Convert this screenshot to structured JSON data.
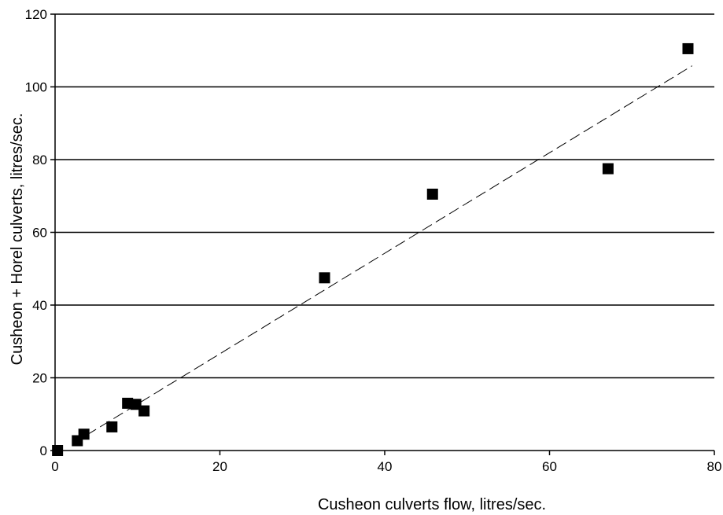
{
  "chart_data": {
    "type": "scatter",
    "title": "",
    "xlabel": "Cusheon culverts flow, litres/sec.",
    "ylabel": "Cusheon + Horel culverts, litres/sec.",
    "xlim": [
      0,
      80
    ],
    "ylim": [
      0,
      120
    ],
    "x_ticks": [
      "0",
      "20",
      "40",
      "60",
      "80"
    ],
    "y_ticks": [
      "0",
      "20",
      "40",
      "60",
      "80",
      "100",
      "120"
    ],
    "grid": "horizontal major gridlines",
    "legend": "none",
    "series": [
      {
        "marker": "square",
        "color": "#000000",
        "points": [
          {
            "x": 0.3,
            "y": 0.0
          },
          {
            "x": 2.7,
            "y": 2.7
          },
          {
            "x": 3.5,
            "y": 4.5
          },
          {
            "x": 6.9,
            "y": 6.5
          },
          {
            "x": 8.8,
            "y": 13.0
          },
          {
            "x": 9.8,
            "y": 12.7
          },
          {
            "x": 10.8,
            "y": 10.9
          },
          {
            "x": 32.7,
            "y": 47.5
          },
          {
            "x": 45.8,
            "y": 70.5
          },
          {
            "x": 67.1,
            "y": 77.5
          },
          {
            "x": 76.8,
            "y": 110.5
          }
        ]
      }
    ],
    "trendline": {
      "style": "dashed",
      "color": "#000000",
      "x": [
        2.2,
        77.3
      ],
      "y": [
        2.0,
        105.8
      ]
    }
  }
}
